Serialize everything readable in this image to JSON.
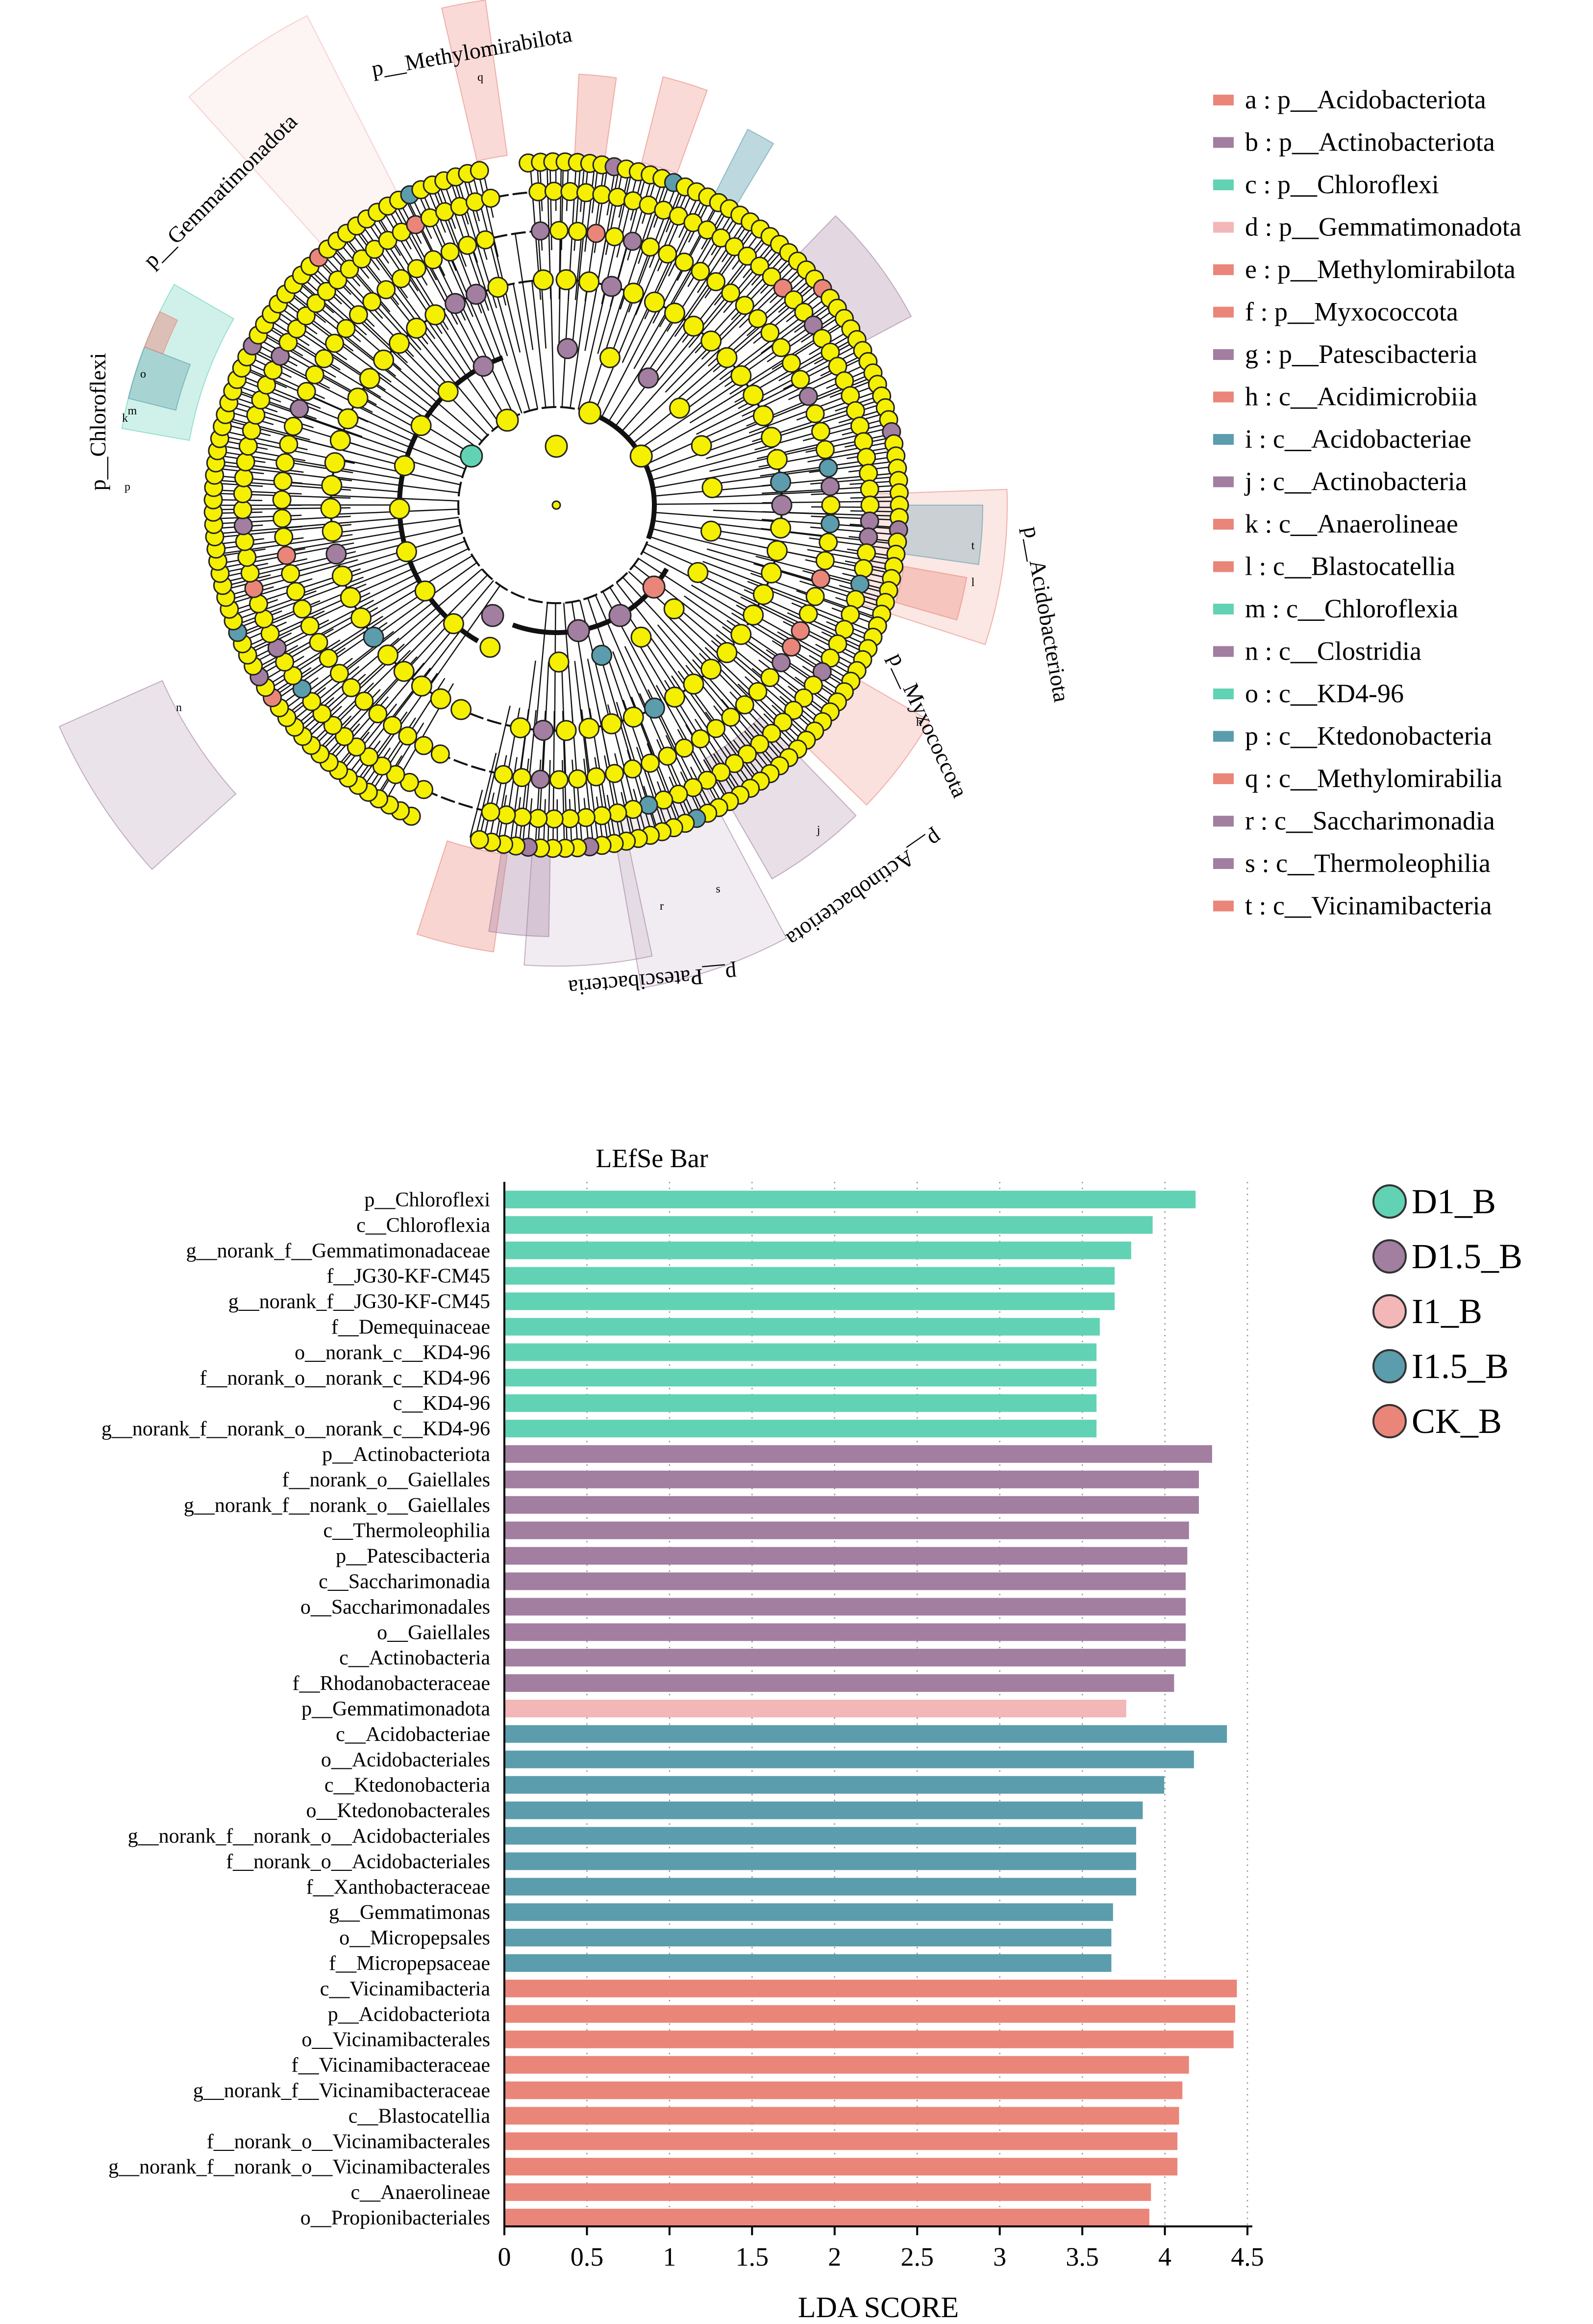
{
  "colors": {
    "D1_B": "#62d2b5",
    "D1_5_B": "#a27ea0",
    "I1_B": "#f2b7b6",
    "I1_5_B": "#5b9dac",
    "CK_B": "#ea8679",
    "node_fill": "#f5f000",
    "branch": "#111111"
  },
  "cladogram": {
    "phylum_labels": [
      {
        "id": "chloroflexi",
        "text": "p__Chloroflexi"
      },
      {
        "id": "gemmatimonadota",
        "text": "p__Gemmatimonadota"
      },
      {
        "id": "methylomirabilota",
        "text": "p__Methylomirabilota"
      },
      {
        "id": "acidobacteriota",
        "text": "p__Acidobacteriota"
      },
      {
        "id": "myxococcota",
        "text": "p__Myxococcota"
      },
      {
        "id": "actinobacteriota",
        "text": "p__Actinobacteriota"
      },
      {
        "id": "patescibacteria",
        "text": "p__Patescibacteria"
      }
    ],
    "clade_letters": [
      "q",
      "o",
      "m",
      "k",
      "p",
      "n",
      "t",
      "l",
      "h",
      "j",
      "s",
      "r"
    ],
    "legend": [
      {
        "letter": "a",
        "text": "a : p__Acidobacteriota",
        "group": "CK_B"
      },
      {
        "letter": "b",
        "text": "b : p__Actinobacteriota",
        "group": "D1_5_B"
      },
      {
        "letter": "c",
        "text": "c : p__Chloroflexi",
        "group": "D1_B"
      },
      {
        "letter": "d",
        "text": "d : p__Gemmatimonadota",
        "group": "I1_B"
      },
      {
        "letter": "e",
        "text": "e : p__Methylomirabilota",
        "group": "CK_B"
      },
      {
        "letter": "f",
        "text": "f : p__Myxococcota",
        "group": "CK_B"
      },
      {
        "letter": "g",
        "text": "g : p__Patescibacteria",
        "group": "D1_5_B"
      },
      {
        "letter": "h",
        "text": "h : c__Acidimicrobiia",
        "group": "CK_B"
      },
      {
        "letter": "i",
        "text": "i : c__Acidobacteriae",
        "group": "I1_5_B"
      },
      {
        "letter": "j",
        "text": "j : c__Actinobacteria",
        "group": "D1_5_B"
      },
      {
        "letter": "k",
        "text": "k : c__Anaerolineae",
        "group": "CK_B"
      },
      {
        "letter": "l",
        "text": "l : c__Blastocatellia",
        "group": "CK_B"
      },
      {
        "letter": "m",
        "text": "m : c__Chloroflexia",
        "group": "D1_B"
      },
      {
        "letter": "n",
        "text": "n : c__Clostridia",
        "group": "D1_5_B"
      },
      {
        "letter": "o",
        "text": "o : c__KD4-96",
        "group": "D1_B"
      },
      {
        "letter": "p",
        "text": "p : c__Ktedonobacteria",
        "group": "I1_5_B"
      },
      {
        "letter": "q",
        "text": "q : c__Methylomirabilia",
        "group": "CK_B"
      },
      {
        "letter": "r",
        "text": "r : c__Saccharimonadia",
        "group": "D1_5_B"
      },
      {
        "letter": "s",
        "text": "s : c__Thermoleophilia",
        "group": "D1_5_B"
      },
      {
        "letter": "t",
        "text": "t : c__Vicinamibacteria",
        "group": "CK_B"
      }
    ]
  },
  "group_legend": [
    {
      "key": "D1_B",
      "label": "D1_B"
    },
    {
      "key": "D1_5_B",
      "label": "D1.5_B"
    },
    {
      "key": "I1_B",
      "label": "I1_B"
    },
    {
      "key": "I1_5_B",
      "label": "I1.5_B"
    },
    {
      "key": "CK_B",
      "label": "CK_B"
    }
  ],
  "chart_data": {
    "type": "bar",
    "orientation": "horizontal",
    "title": "LEfSe Bar",
    "xlabel": "LDA SCORE",
    "ylabel": "",
    "xlim": [
      0,
      4.5
    ],
    "xticks": [
      "0",
      "0.5",
      "1",
      "1.5",
      "2",
      "2.5",
      "3",
      "3.5",
      "4",
      "4.5"
    ],
    "grid": "vertical dotted",
    "bars": [
      {
        "label": "p__Chloroflexi",
        "value": 4.18,
        "group": "D1_B"
      },
      {
        "label": "c__Chloroflexia",
        "value": 3.92,
        "group": "D1_B"
      },
      {
        "label": "g__norank_f__Gemmatimonadaceae",
        "value": 3.79,
        "group": "D1_B"
      },
      {
        "label": "f__JG30-KF-CM45",
        "value": 3.69,
        "group": "D1_B"
      },
      {
        "label": "g__norank_f__JG30-KF-CM45",
        "value": 3.69,
        "group": "D1_B"
      },
      {
        "label": "f__Demequinaceae",
        "value": 3.6,
        "group": "D1_B"
      },
      {
        "label": "o__norank_c__KD4-96",
        "value": 3.58,
        "group": "D1_B"
      },
      {
        "label": "f__norank_o__norank_c__KD4-96",
        "value": 3.58,
        "group": "D1_B"
      },
      {
        "label": "c__KD4-96",
        "value": 3.58,
        "group": "D1_B"
      },
      {
        "label": "g__norank_f__norank_o__norank_c__KD4-96",
        "value": 3.58,
        "group": "D1_B"
      },
      {
        "label": "p__Actinobacteriota",
        "value": 4.28,
        "group": "D1_5_B"
      },
      {
        "label": "f__norank_o__Gaiellales",
        "value": 4.2,
        "group": "D1_5_B"
      },
      {
        "label": "g__norank_f__norank_o__Gaiellales",
        "value": 4.2,
        "group": "D1_5_B"
      },
      {
        "label": "c__Thermoleophilia",
        "value": 4.14,
        "group": "D1_5_B"
      },
      {
        "label": "p__Patescibacteria",
        "value": 4.13,
        "group": "D1_5_B"
      },
      {
        "label": "c__Saccharimonadia",
        "value": 4.12,
        "group": "D1_5_B"
      },
      {
        "label": "o__Saccharimonadales",
        "value": 4.12,
        "group": "D1_5_B"
      },
      {
        "label": "o__Gaiellales",
        "value": 4.12,
        "group": "D1_5_B"
      },
      {
        "label": "c__Actinobacteria",
        "value": 4.12,
        "group": "D1_5_B"
      },
      {
        "label": "f__Rhodanobacteraceae",
        "value": 4.05,
        "group": "D1_5_B"
      },
      {
        "label": "p__Gemmatimonadota",
        "value": 3.76,
        "group": "I1_B"
      },
      {
        "label": "c__Acidobacteriae",
        "value": 4.37,
        "group": "I1_5_B"
      },
      {
        "label": "o__Acidobacteriales",
        "value": 4.17,
        "group": "I1_5_B"
      },
      {
        "label": "c__Ktedonobacteria",
        "value": 3.99,
        "group": "I1_5_B"
      },
      {
        "label": "o__Ktedonobacterales",
        "value": 3.86,
        "group": "I1_5_B"
      },
      {
        "label": "g__norank_f__norank_o__Acidobacteriales",
        "value": 3.82,
        "group": "I1_5_B"
      },
      {
        "label": "f__norank_o__Acidobacteriales",
        "value": 3.82,
        "group": "I1_5_B"
      },
      {
        "label": "f__Xanthobacteraceae",
        "value": 3.82,
        "group": "I1_5_B"
      },
      {
        "label": "g__Gemmatimonas",
        "value": 3.68,
        "group": "I1_5_B"
      },
      {
        "label": "o__Micropepsales",
        "value": 3.67,
        "group": "I1_5_B"
      },
      {
        "label": "f__Micropepsaceae",
        "value": 3.67,
        "group": "I1_5_B"
      },
      {
        "label": "c__Vicinamibacteria",
        "value": 4.43,
        "group": "CK_B"
      },
      {
        "label": "p__Acidobacteriota",
        "value": 4.42,
        "group": "CK_B"
      },
      {
        "label": "o__Vicinamibacterales",
        "value": 4.41,
        "group": "CK_B"
      },
      {
        "label": "f__Vicinamibacteraceae",
        "value": 4.14,
        "group": "CK_B"
      },
      {
        "label": "g__norank_f__Vicinamibacteraceae",
        "value": 4.1,
        "group": "CK_B"
      },
      {
        "label": "c__Blastocatellia",
        "value": 4.08,
        "group": "CK_B"
      },
      {
        "label": "f__norank_o__Vicinamibacterales",
        "value": 4.07,
        "group": "CK_B"
      },
      {
        "label": "g__norank_f__norank_o__Vicinamibacterales",
        "value": 4.07,
        "group": "CK_B"
      },
      {
        "label": "c__Anaerolineae",
        "value": 3.91,
        "group": "CK_B"
      },
      {
        "label": "o__Propionibacteriales",
        "value": 3.9,
        "group": "CK_B"
      }
    ]
  }
}
